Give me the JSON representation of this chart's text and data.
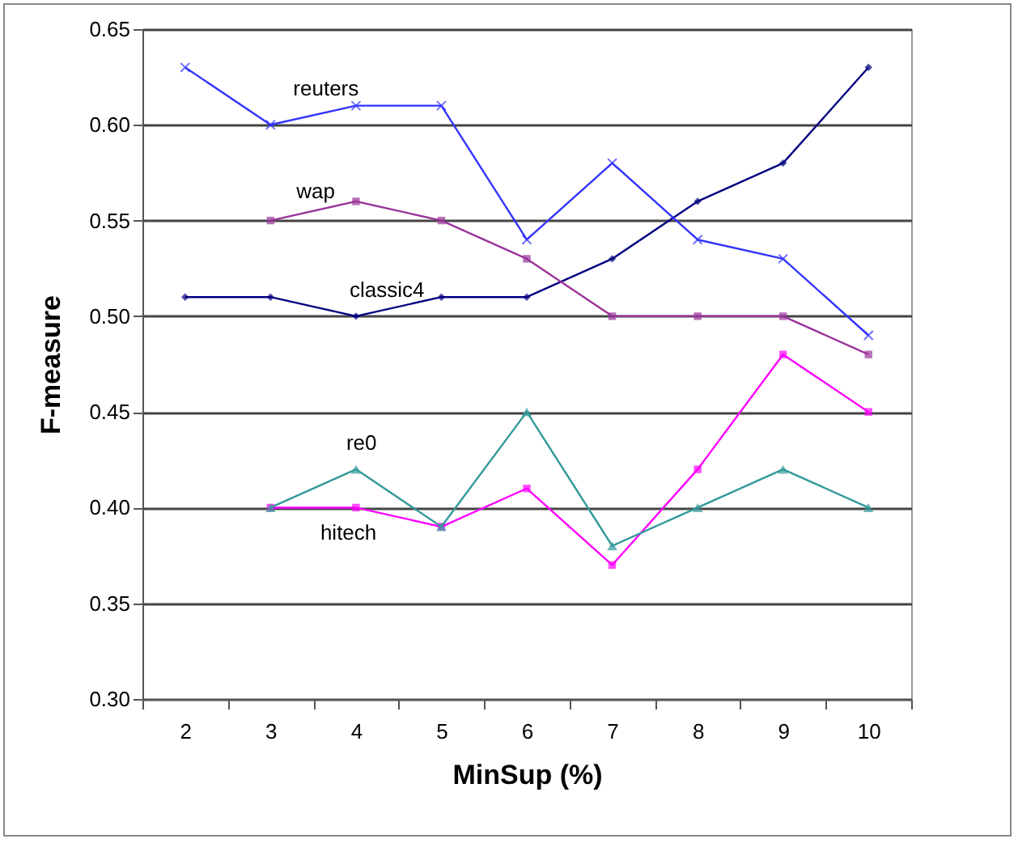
{
  "chart_data": {
    "type": "line",
    "xlabel": "MinSup (%)",
    "ylabel": "F-measure",
    "categories": [
      "2",
      "3",
      "4",
      "5",
      "6",
      "7",
      "8",
      "9",
      "10"
    ],
    "series": [
      {
        "name": "reuters",
        "color": "#3333ff",
        "marker": "cross",
        "values": [
          0.63,
          0.6,
          0.61,
          0.61,
          0.54,
          0.58,
          0.54,
          0.53,
          0.49
        ]
      },
      {
        "name": "wap",
        "color": "#993399",
        "marker": "square",
        "values": [
          null,
          0.55,
          0.56,
          0.55,
          0.53,
          0.5,
          0.5,
          0.5,
          0.48
        ]
      },
      {
        "name": "classic4",
        "color": "#000080",
        "marker": "diamond",
        "values": [
          0.51,
          0.51,
          0.5,
          0.51,
          0.51,
          0.53,
          0.56,
          0.58,
          0.63
        ]
      },
      {
        "name": "re0",
        "color": "#339999",
        "marker": "triangle",
        "values": [
          null,
          0.4,
          0.42,
          0.39,
          0.45,
          0.38,
          0.4,
          0.42,
          0.4
        ]
      },
      {
        "name": "hitech",
        "color": "#ff00ff",
        "marker": "square",
        "values": [
          null,
          0.4,
          0.4,
          0.39,
          0.41,
          0.37,
          0.42,
          0.48,
          0.45
        ]
      }
    ],
    "ylim": [
      0.3,
      0.65
    ],
    "yticks": [
      {
        "value": 0.3,
        "label": "0.30"
      },
      {
        "value": 0.35,
        "label": "0.35"
      },
      {
        "value": 0.4,
        "label": "0.40"
      },
      {
        "value": 0.45,
        "label": "0.45"
      },
      {
        "value": 0.5,
        "label": "0.50"
      },
      {
        "value": 0.55,
        "label": "0.55"
      },
      {
        "value": 0.6,
        "label": "0.60"
      },
      {
        "value": 0.65,
        "label": "0.65"
      }
    ],
    "grid": "y",
    "line_style": "solid"
  }
}
